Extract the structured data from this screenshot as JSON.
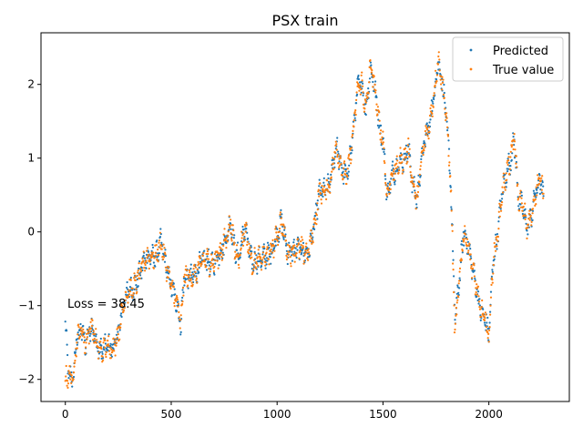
{
  "chart_data": {
    "type": "scatter",
    "title": "PSX train",
    "xlabel": "",
    "ylabel": "",
    "xlim": [
      -115,
      2380
    ],
    "ylim": [
      -2.3,
      2.7
    ],
    "x_ticks": [
      0,
      500,
      1000,
      1500,
      2000
    ],
    "x_tick_labels": [
      "0",
      "500",
      "1000",
      "1500",
      "2000"
    ],
    "y_ticks": [
      -2,
      -1,
      0,
      1,
      2
    ],
    "y_tick_labels": [
      "−2",
      "−1",
      "0",
      "1",
      "2"
    ],
    "grid": false,
    "legend_position": "top-right",
    "annotation": "Loss = 38.45",
    "n_points": 2260,
    "series": [
      {
        "name": "Predicted",
        "color": "#1f77b4",
        "x_start": 0,
        "x_step": 1,
        "shape_knots": [
          [
            0,
            -1.25
          ],
          [
            15,
            -2.0
          ],
          [
            35,
            -2.05
          ],
          [
            55,
            -1.4
          ],
          [
            75,
            -1.25
          ],
          [
            95,
            -1.55
          ],
          [
            125,
            -1.3
          ],
          [
            150,
            -1.5
          ],
          [
            175,
            -1.6
          ],
          [
            200,
            -1.62
          ],
          [
            225,
            -1.58
          ],
          [
            250,
            -1.3
          ],
          [
            280,
            -0.95
          ],
          [
            310,
            -0.8
          ],
          [
            340,
            -0.6
          ],
          [
            370,
            -0.45
          ],
          [
            400,
            -0.35
          ],
          [
            430,
            -0.25
          ],
          [
            450,
            -0.15
          ],
          [
            470,
            -0.45
          ],
          [
            490,
            -0.65
          ],
          [
            510,
            -0.75
          ],
          [
            530,
            -0.95
          ],
          [
            545,
            -1.3
          ],
          [
            560,
            -0.7
          ],
          [
            600,
            -0.55
          ],
          [
            650,
            -0.45
          ],
          [
            700,
            -0.35
          ],
          [
            740,
            -0.3
          ],
          [
            760,
            -0.1
          ],
          [
            780,
            0.2
          ],
          [
            800,
            -0.2
          ],
          [
            820,
            -0.4
          ],
          [
            850,
            0.05
          ],
          [
            880,
            -0.35
          ],
          [
            920,
            -0.45
          ],
          [
            960,
            -0.25
          ],
          [
            1000,
            -0.1
          ],
          [
            1020,
            0.1
          ],
          [
            1050,
            -0.2
          ],
          [
            1100,
            -0.3
          ],
          [
            1150,
            -0.2
          ],
          [
            1180,
            0.1
          ],
          [
            1200,
            0.5
          ],
          [
            1250,
            0.7
          ],
          [
            1280,
            1.1
          ],
          [
            1300,
            0.9
          ],
          [
            1330,
            0.8
          ],
          [
            1360,
            1.3
          ],
          [
            1380,
            1.9
          ],
          [
            1400,
            2.05
          ],
          [
            1420,
            1.7
          ],
          [
            1440,
            2.2
          ],
          [
            1460,
            1.9
          ],
          [
            1480,
            1.5
          ],
          [
            1500,
            1.3
          ],
          [
            1520,
            0.5
          ],
          [
            1540,
            0.7
          ],
          [
            1560,
            0.8
          ],
          [
            1580,
            1.0
          ],
          [
            1600,
            1.05
          ],
          [
            1620,
            1.1
          ],
          [
            1640,
            0.6
          ],
          [
            1660,
            0.4
          ],
          [
            1680,
            1.0
          ],
          [
            1700,
            1.3
          ],
          [
            1720,
            1.4
          ],
          [
            1740,
            1.8
          ],
          [
            1760,
            2.35
          ],
          [
            1780,
            2.1
          ],
          [
            1800,
            1.5
          ],
          [
            1820,
            0.6
          ],
          [
            1840,
            -1.2
          ],
          [
            1860,
            -0.6
          ],
          [
            1880,
            0.0
          ],
          [
            1900,
            -0.2
          ],
          [
            1920,
            -0.5
          ],
          [
            1940,
            -0.7
          ],
          [
            1960,
            -1.0
          ],
          [
            1980,
            -1.2
          ],
          [
            2000,
            -1.45
          ],
          [
            2020,
            -0.4
          ],
          [
            2040,
            0.0
          ],
          [
            2060,
            0.5
          ],
          [
            2080,
            0.7
          ],
          [
            2100,
            0.9
          ],
          [
            2120,
            1.3
          ],
          [
            2140,
            0.5
          ],
          [
            2160,
            0.3
          ],
          [
            2180,
            0.0
          ],
          [
            2200,
            0.2
          ],
          [
            2220,
            0.6
          ],
          [
            2240,
            0.7
          ],
          [
            2260,
            0.4
          ]
        ]
      },
      {
        "name": "True value",
        "color": "#ff7f0e",
        "x_start": 0,
        "x_step": 1,
        "shape_knots": [
          [
            0,
            -2.0
          ],
          [
            15,
            -2.0
          ],
          [
            35,
            -2.05
          ],
          [
            55,
            -1.4
          ],
          [
            75,
            -1.25
          ],
          [
            95,
            -1.55
          ],
          [
            125,
            -1.3
          ],
          [
            150,
            -1.5
          ],
          [
            175,
            -1.6
          ],
          [
            200,
            -1.62
          ],
          [
            225,
            -1.58
          ],
          [
            250,
            -1.3
          ],
          [
            280,
            -0.95
          ],
          [
            310,
            -0.8
          ],
          [
            340,
            -0.6
          ],
          [
            370,
            -0.45
          ],
          [
            400,
            -0.35
          ],
          [
            430,
            -0.25
          ],
          [
            450,
            -0.15
          ],
          [
            470,
            -0.45
          ],
          [
            490,
            -0.65
          ],
          [
            510,
            -0.75
          ],
          [
            530,
            -0.95
          ],
          [
            545,
            -1.3
          ],
          [
            560,
            -0.7
          ],
          [
            600,
            -0.55
          ],
          [
            650,
            -0.45
          ],
          [
            700,
            -0.35
          ],
          [
            740,
            -0.3
          ],
          [
            760,
            -0.1
          ],
          [
            780,
            0.2
          ],
          [
            800,
            -0.2
          ],
          [
            820,
            -0.4
          ],
          [
            850,
            0.05
          ],
          [
            880,
            -0.35
          ],
          [
            920,
            -0.45
          ],
          [
            960,
            -0.25
          ],
          [
            1000,
            -0.1
          ],
          [
            1020,
            0.1
          ],
          [
            1050,
            -0.2
          ],
          [
            1100,
            -0.3
          ],
          [
            1150,
            -0.2
          ],
          [
            1180,
            0.1
          ],
          [
            1200,
            0.5
          ],
          [
            1250,
            0.7
          ],
          [
            1280,
            1.1
          ],
          [
            1300,
            0.9
          ],
          [
            1330,
            0.8
          ],
          [
            1360,
            1.3
          ],
          [
            1380,
            1.9
          ],
          [
            1400,
            2.05
          ],
          [
            1420,
            1.7
          ],
          [
            1440,
            2.25
          ],
          [
            1460,
            1.9
          ],
          [
            1480,
            1.5
          ],
          [
            1500,
            1.3
          ],
          [
            1520,
            0.5
          ],
          [
            1540,
            0.7
          ],
          [
            1560,
            0.8
          ],
          [
            1580,
            1.0
          ],
          [
            1600,
            1.05
          ],
          [
            1620,
            1.1
          ],
          [
            1640,
            0.6
          ],
          [
            1660,
            0.4
          ],
          [
            1680,
            1.0
          ],
          [
            1700,
            1.3
          ],
          [
            1720,
            1.4
          ],
          [
            1740,
            1.8
          ],
          [
            1760,
            2.4
          ],
          [
            1780,
            2.1
          ],
          [
            1800,
            1.5
          ],
          [
            1820,
            0.6
          ],
          [
            1840,
            -1.4
          ],
          [
            1860,
            -0.6
          ],
          [
            1880,
            0.0
          ],
          [
            1900,
            -0.2
          ],
          [
            1920,
            -0.5
          ],
          [
            1940,
            -0.7
          ],
          [
            1960,
            -1.0
          ],
          [
            1980,
            -1.2
          ],
          [
            2000,
            -1.5
          ],
          [
            2020,
            -0.4
          ],
          [
            2040,
            0.0
          ],
          [
            2060,
            0.5
          ],
          [
            2080,
            0.7
          ],
          [
            2100,
            0.9
          ],
          [
            2120,
            1.35
          ],
          [
            2140,
            0.5
          ],
          [
            2160,
            0.3
          ],
          [
            2180,
            0.0
          ],
          [
            2200,
            0.2
          ],
          [
            2220,
            0.6
          ],
          [
            2240,
            0.75
          ],
          [
            2260,
            0.4
          ]
        ]
      }
    ]
  }
}
